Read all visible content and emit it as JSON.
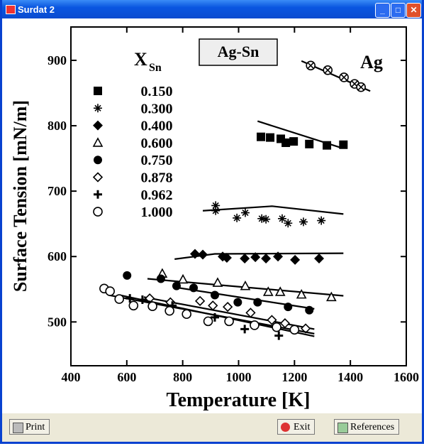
{
  "window": {
    "title": "Surdat 2",
    "buttons": {
      "print": "Print",
      "exit": "Exit",
      "references": "References"
    }
  },
  "chart_data": {
    "type": "scatter",
    "legend_title": "X",
    "legend_subscript": "Sn",
    "label_box": "Ag-Sn",
    "x_label": "Temperature [K]",
    "y_label": "Surface Tension [mN/m]",
    "xlim": [
      400,
      1600
    ],
    "xticks": [
      400,
      600,
      800,
      1000,
      1200,
      1400,
      1600
    ],
    "ylim": [
      433,
      951
    ],
    "yticks": [
      500,
      600,
      700,
      800,
      900
    ],
    "color": "#000000",
    "series": [
      {
        "name": "Ag",
        "marker": "circle-x",
        "x": [
          1258,
          1319,
          1377,
          1415,
          1438
        ],
        "values": [
          892,
          885,
          874,
          864,
          859
        ],
        "fit_x": [
          1225,
          1471
        ],
        "fit_y": [
          899,
          853
        ]
      },
      {
        "name": "0.150",
        "marker": "square",
        "x": [
          1080,
          1113,
          1151,
          1169,
          1197,
          1253,
          1316,
          1375
        ],
        "values": [
          783,
          782,
          780,
          774,
          776,
          772,
          770,
          771
        ],
        "fit_x": [
          1068,
          1362
        ],
        "fit_y": [
          807,
          767
        ]
      },
      {
        "name": "0.300",
        "marker": "asterisk",
        "x": [
          918,
          918,
          994,
          1024,
          1083,
          1098,
          1156,
          1177,
          1232,
          1296
        ],
        "values": [
          678,
          670,
          659,
          667,
          658,
          657,
          658,
          651,
          653,
          655
        ],
        "fit_x": [
          872,
          1120,
          1375
        ],
        "fit_y": [
          670,
          677,
          665
        ]
      },
      {
        "name": "0.400",
        "marker": "diamond",
        "x": [
          844,
          872,
          943,
          958,
          1022,
          1060,
          1098,
          1141,
          1202,
          1288
        ],
        "values": [
          604,
          603,
          600,
          598,
          597,
          599,
          597,
          600,
          595,
          597
        ],
        "fit_x": [
          771,
          915,
          1375
        ],
        "fit_y": [
          596,
          604,
          605
        ]
      },
      {
        "name": "0.600",
        "marker": "triangle",
        "x": [
          727,
          801,
          925,
          1024,
          1106,
          1149,
          1225,
          1332
        ],
        "values": [
          574,
          565,
          560,
          555,
          546,
          546,
          542,
          538
        ],
        "fit_x": [
          674,
          1375
        ],
        "fit_y": [
          566,
          540
        ]
      },
      {
        "name": "0.750",
        "marker": "circle",
        "x": [
          601,
          722,
          778,
          839,
          915,
          997,
          1068,
          1177,
          1253
        ],
        "values": [
          571,
          566,
          555,
          552,
          541,
          530,
          530,
          523,
          518
        ],
        "fit_x": [
          788,
          1271
        ],
        "fit_y": [
          552,
          520
        ]
      },
      {
        "name": "0.878",
        "marker": "open-diamond",
        "x": [
          682,
          756,
          862,
          908,
          961,
          1043,
          1119,
          1166,
          1240
        ],
        "values": [
          536,
          530,
          532,
          525,
          523,
          514,
          503,
          498,
          490
        ],
        "fit_x": [
          661,
          1271
        ],
        "fit_y": [
          538,
          489
        ]
      },
      {
        "name": "0.962",
        "marker": "plus",
        "x": [
          611,
          656,
          763,
          915,
          1022,
          1144
        ],
        "values": [
          536,
          534,
          525,
          507,
          489,
          479
        ],
        "fit_x": [
          575,
          1271
        ],
        "fit_y": [
          541,
          478
        ]
      },
      {
        "name": "1.000",
        "marker": "open-circle",
        "x": [
          519,
          540,
          573,
          624,
          692,
          753,
          814,
          891,
          966,
          1057,
          1136,
          1200
        ],
        "values": [
          551,
          547,
          535,
          525,
          524,
          517,
          512,
          501,
          501,
          495,
          492,
          488
        ],
        "fit_x": [
          535,
          1271
        ],
        "fit_y": [
          541,
          482
        ]
      }
    ]
  }
}
